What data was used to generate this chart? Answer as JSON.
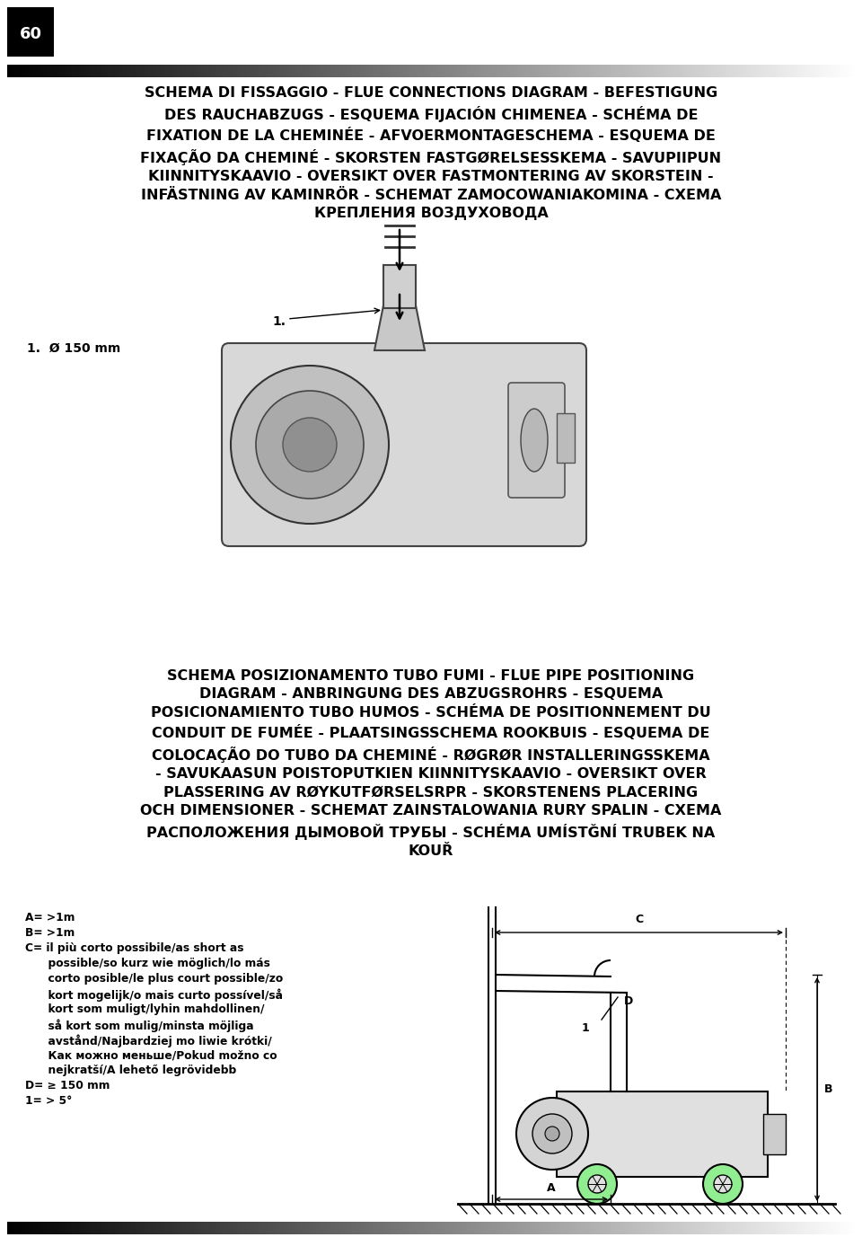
{
  "page_number": "60",
  "bg_color": "#ffffff",
  "title1": "SCHEMA DI FISSAGGIO - FLUE CONNECTIONS DIAGRAM - BEFESTIGUNG\nDES RAUCHABZUGS - ESQUEMA FIJACIÓN CHIMENEA - SCHÉMA DE\nFIXATION DE LA CHEMINÉE - AFVOERMONTAGESCHEMA - ESQUEMA DE\nFIXAÇÃO DA CHEMINÉ - SKORSTEN FASTGØRELSESSKEMA - SAVUPIIPUN\nKIINNITYSKAAVIO - OVERSIKT OVER FASTMONTERING AV SKORSTEIN -\nINFÄSTNING AV KAMINRÖR - SCHEMAT ZAMOCOWANIAKOMINA - СХЕМА\nКРЕПЛЕНИЯ ВОЗДУХОВОДА",
  "label1": "1.  Ø 150 mm",
  "title2": "SCHEMA POSIZIONAMENTO TUBO FUMI - FLUE PIPE POSITIONING\nDIAGRAM - ANBRINGUNG DES ABZUGSROHRS - ESQUEMA\nPOSICIONAMIENTO TUBO HUMOS - SCHÉMA DE POSITIONNEMENT DU\nCONDUIT DE FUMÉE - PLAATSINGSSCHEMA ROOKBUIS - ESQUEMA DE\nCOLOCAÇÃO DO TUBO DA CHEMINÉ - RØGRØR INSTALLERINGSSKEMA\n- SAVUKAASUN POISTOPUTKIEN KIINNITYSKAAVIO - OVERSIKT OVER\nPLASSERING AV RØYKUTFØRSELSRPR - SKORSTENENS PLACERING\nOCH DIMENSIONER - SCHEMAT ZAINSTALOWANIA RURY SPALIN - СХЕМА\nРАСПОЛОЖЕНИЯ ДЫМОВОЙ ТРУБЫ - SCHÉMA UMÍSTĞNÍ TRUBEK NA\nKOUŘ",
  "legend_lines": [
    "A= >1m",
    "B= >1m",
    "C= il più corto possibile/as short as",
    "      possible/so kurz wie möglich/lo más",
    "      corto posible/le plus court possible/zo",
    "      kort mogelijk/o mais curto possível/så",
    "      kort som muligt/lyhin mahdollinen/",
    "      så kort som mulig/minsta möjliga",
    "      avstånd/Najbardziej mo liwie krótki/",
    "      Как можно меньше/Pokud možno co",
    "      nejkratší/A lehető legrövidebb",
    "D= ≥ 150 mm",
    "1= > 5°"
  ]
}
